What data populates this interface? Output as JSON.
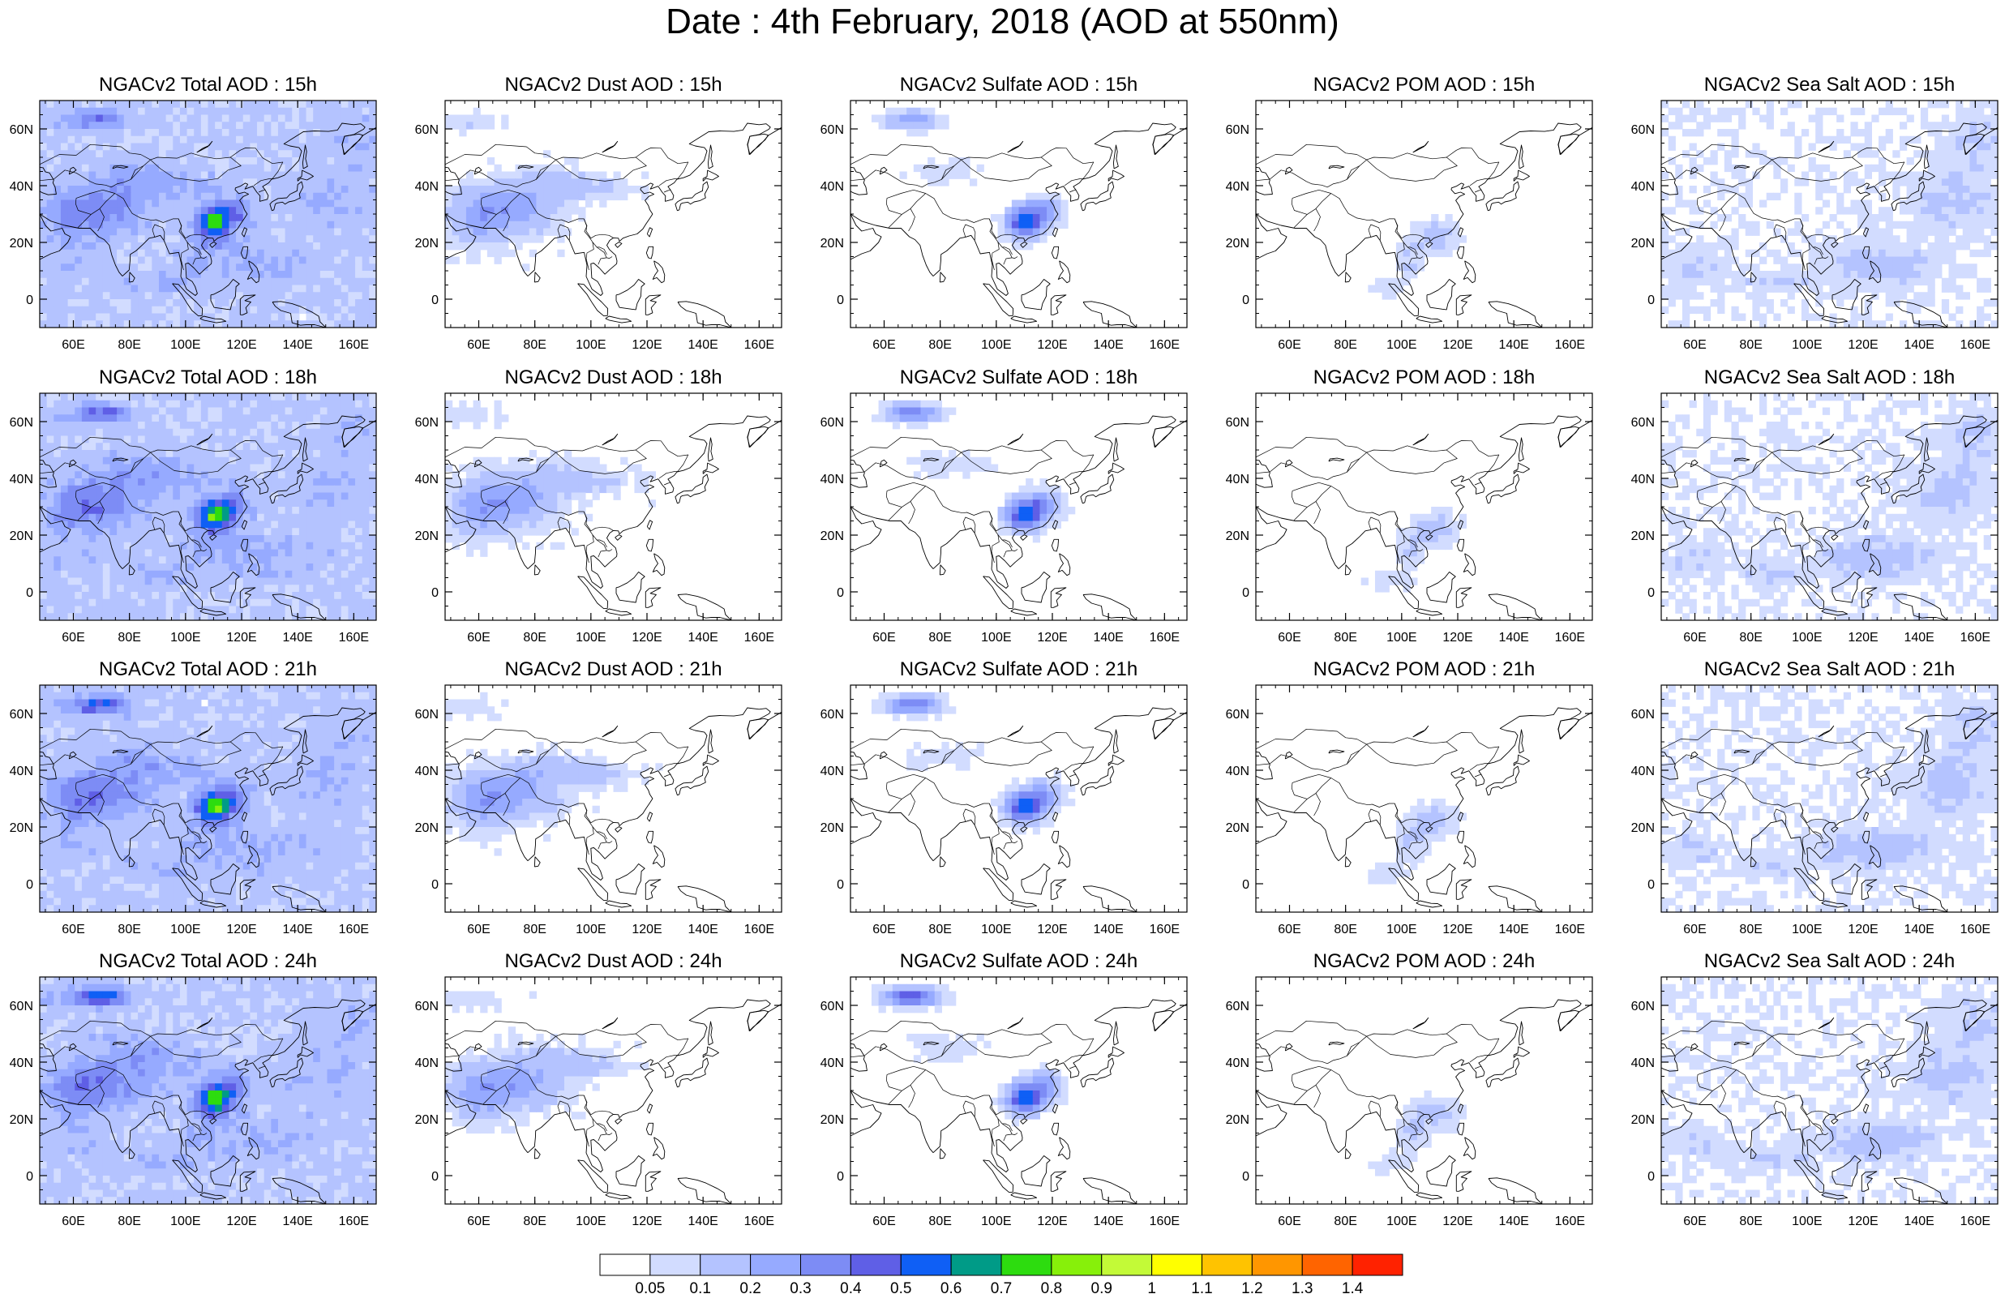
{
  "title": "Date : 4th February, 2018 (AOD at 550nm)",
  "rows": [
    "15h",
    "18h",
    "21h",
    "24h"
  ],
  "columns": [
    {
      "id": "total",
      "label": "NGACv2 Total AOD"
    },
    {
      "id": "dust",
      "label": "NGACv2 Dust AOD"
    },
    {
      "id": "sulfate",
      "label": "NGACv2 Sulfate AOD"
    },
    {
      "id": "pom",
      "label": "NGACv2 POM AOD"
    },
    {
      "id": "seasalt",
      "label": "NGACv2 Sea Salt AOD"
    }
  ],
  "panel_titles": [
    [
      "NGACv2 Total AOD : 15h",
      "NGACv2 Dust AOD : 15h",
      "NGACv2 Sulfate AOD : 15h",
      "NGACv2 POM AOD : 15h",
      "NGACv2 Sea Salt AOD : 15h"
    ],
    [
      "NGACv2 Total AOD : 18h",
      "NGACv2 Dust AOD : 18h",
      "NGACv2 Sulfate AOD : 18h",
      "NGACv2 POM AOD : 18h",
      "NGACv2 Sea Salt AOD : 18h"
    ],
    [
      "NGACv2 Total AOD : 21h",
      "NGACv2 Dust AOD : 21h",
      "NGACv2 Sulfate AOD : 21h",
      "NGACv2 POM AOD : 21h",
      "NGACv2 Sea Salt AOD : 21h"
    ],
    [
      "NGACv2 Total AOD : 24h",
      "NGACv2 Dust AOD : 24h",
      "NGACv2 Sulfate AOD : 24h",
      "NGACv2 POM AOD : 24h",
      "NGACv2 Sea Salt  AOD : 24h"
    ]
  ],
  "map": {
    "lon_range": [
      48,
      168
    ],
    "lat_range": [
      -10,
      70
    ],
    "lon_ticks": [
      60,
      80,
      100,
      120,
      140,
      160
    ],
    "lon_tick_labels": [
      "60E",
      "80E",
      "100E",
      "120E",
      "140E",
      "160E"
    ],
    "lat_ticks": [
      0,
      20,
      40,
      60
    ],
    "lat_tick_labels": [
      "0",
      "20N",
      "40N",
      "60N"
    ]
  },
  "colorbar": {
    "labels": [
      "0.05",
      "0.1",
      "0.2",
      "0.3",
      "0.4",
      "0.5",
      "0.6",
      "0.7",
      "0.8",
      "0.9",
      "1",
      "1.1",
      "1.2",
      "1.3",
      "1.4"
    ],
    "colors": [
      "#ffffff",
      "#d2dcff",
      "#b4c3ff",
      "#96aaff",
      "#7d8cf5",
      "#5f5fe6",
      "#0f5ff5",
      "#009b87",
      "#2ddc0f",
      "#87f00a",
      "#c3fa37",
      "#ffff00",
      "#ffc300",
      "#ff9600",
      "#ff6400",
      "#ff2200"
    ]
  },
  "colors": {
    "coastline": "#000000",
    "frame": "#000000"
  }
}
